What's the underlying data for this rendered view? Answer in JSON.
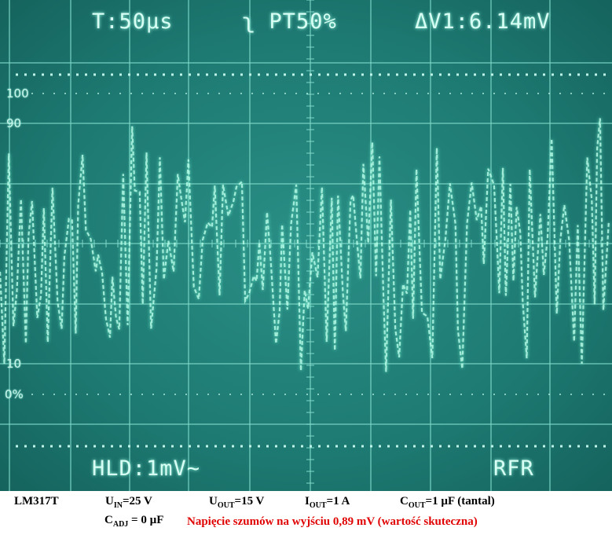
{
  "screen": {
    "readouts": {
      "timebase": "T:50µs",
      "trigger": "ʅ PT50%",
      "delta": "ΔV1:6.14mV",
      "hold": "HLD:1mV~",
      "mode": "RFR"
    },
    "graticule_labels": [
      "100",
      "90",
      "10",
      "0%"
    ]
  },
  "caption": {
    "line1": [
      {
        "main": "LM317T"
      },
      {
        "main": "U",
        "sub": "IN",
        "rest": "=25 V"
      },
      {
        "main": "U",
        "sub": "OUT",
        "rest": "=15 V"
      },
      {
        "main": "I",
        "sub": "OUT",
        "rest": "=1 A"
      },
      {
        "main": "C",
        "sub": "OUT",
        "rest": "=1 µF (tantal)"
      }
    ],
    "line2": [
      {
        "main": "C",
        "sub": "ADJ",
        "rest": " = 0 µF"
      },
      {
        "main": "Napięcie szumów na wyjściu 0,89 mV (wartość skuteczna)"
      }
    ]
  }
}
